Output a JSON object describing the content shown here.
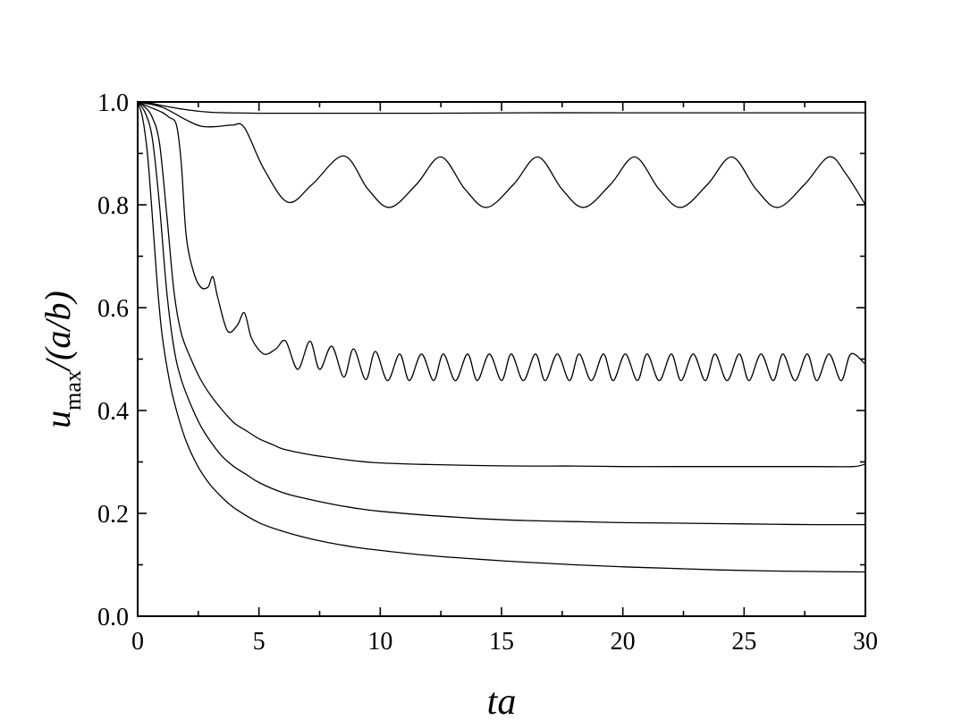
{
  "chart_data": {
    "type": "line",
    "title": "",
    "xlabel": "ta",
    "ylabel": {
      "main": "u",
      "subscript": "max",
      "suffix": "/(a/b)"
    },
    "xlim": [
      0,
      30
    ],
    "ylim": [
      0,
      1.0
    ],
    "xticks": [
      0,
      5,
      10,
      15,
      20,
      25,
      30
    ],
    "xtick_labels": [
      "0",
      "5",
      "10",
      "15",
      "20",
      "25",
      "30"
    ],
    "yticks": [
      0.0,
      0.2,
      0.4,
      0.6,
      0.8,
      1.0
    ],
    "ytick_labels": [
      "0.0",
      "0.2",
      "0.4",
      "0.6",
      "0.8",
      "1.0"
    ],
    "grid": false,
    "legend": false,
    "line_color": "#000000",
    "series": [
      {
        "x": [
          0,
          0.5,
          1,
          2,
          3,
          5,
          8,
          12,
          16,
          20,
          25,
          30
        ],
        "values": [
          1.0,
          0.998,
          0.993,
          0.985,
          0.98,
          0.978,
          0.978,
          0.978,
          0.979,
          0.979,
          0.979,
          0.979
        ]
      },
      {
        "x": [
          0,
          1,
          2,
          2.6,
          3.2,
          3.9,
          4.4,
          5.2,
          6.2,
          7.2,
          8.5,
          9.5,
          10.4,
          11.5,
          12.5,
          13.5,
          14.4,
          15.5,
          16.5,
          17.5,
          18.4,
          19.5,
          20.5,
          21.5,
          22.4,
          23.5,
          24.5,
          25.5,
          26.4,
          27.5,
          28.5,
          29.2,
          30
        ],
        "values": [
          1.0,
          0.99,
          0.965,
          0.953,
          0.952,
          0.955,
          0.95,
          0.87,
          0.805,
          0.84,
          0.895,
          0.83,
          0.795,
          0.84,
          0.893,
          0.83,
          0.795,
          0.84,
          0.893,
          0.83,
          0.795,
          0.84,
          0.893,
          0.83,
          0.795,
          0.84,
          0.893,
          0.83,
          0.795,
          0.84,
          0.893,
          0.86,
          0.8
        ]
      },
      {
        "x": [
          0,
          0.5,
          1,
          1.3,
          1.6,
          1.8,
          2,
          2.3,
          2.6,
          2.9,
          3.1,
          3.3,
          3.7,
          4.1,
          4.4,
          4.7,
          5.2,
          5.7,
          6.1,
          6.6,
          7.1,
          7.5,
          8.0,
          8.5,
          8.9,
          9.4,
          9.8,
          10.3,
          10.8,
          11.2,
          11.7,
          12.2,
          12.6,
          13.1,
          13.6,
          14.0,
          14.5,
          15.0,
          15.4,
          15.9,
          16.4,
          16.8,
          17.3,
          17.8,
          18.2,
          18.7,
          19.2,
          19.6,
          20.1,
          20.6,
          21.0,
          21.5,
          22.0,
          22.4,
          22.9,
          23.4,
          23.8,
          24.3,
          24.8,
          25.2,
          25.7,
          26.2,
          26.6,
          27.1,
          27.6,
          28.0,
          28.5,
          29.0,
          29.4,
          30
        ],
        "values": [
          1.0,
          0.99,
          0.98,
          0.97,
          0.955,
          0.88,
          0.74,
          0.67,
          0.64,
          0.64,
          0.66,
          0.62,
          0.555,
          0.565,
          0.59,
          0.54,
          0.51,
          0.52,
          0.535,
          0.48,
          0.535,
          0.48,
          0.525,
          0.465,
          0.52,
          0.46,
          0.515,
          0.458,
          0.51,
          0.458,
          0.51,
          0.458,
          0.51,
          0.458,
          0.51,
          0.458,
          0.51,
          0.458,
          0.51,
          0.458,
          0.51,
          0.458,
          0.51,
          0.458,
          0.51,
          0.458,
          0.51,
          0.458,
          0.51,
          0.458,
          0.51,
          0.458,
          0.51,
          0.458,
          0.51,
          0.458,
          0.51,
          0.458,
          0.51,
          0.458,
          0.51,
          0.458,
          0.51,
          0.458,
          0.51,
          0.458,
          0.51,
          0.458,
          0.51,
          0.49
        ]
      },
      {
        "x": [
          0,
          0.3,
          0.6,
          0.9,
          1.2,
          1.5,
          1.8,
          2.2,
          2.6,
          3.0,
          3.5,
          4.0,
          4.5,
          5.0,
          5.5,
          6.0,
          7.0,
          8.0,
          9.0,
          10.0,
          12.0,
          14.0,
          16.0,
          18.0,
          20.0,
          22.0,
          24.0,
          26.0,
          28.0,
          29.5,
          30
        ],
        "values": [
          1.0,
          0.99,
          0.97,
          0.92,
          0.78,
          0.63,
          0.55,
          0.5,
          0.46,
          0.43,
          0.4,
          0.375,
          0.36,
          0.345,
          0.335,
          0.325,
          0.315,
          0.308,
          0.302,
          0.298,
          0.295,
          0.293,
          0.292,
          0.292,
          0.291,
          0.291,
          0.291,
          0.291,
          0.291,
          0.291,
          0.296
        ]
      },
      {
        "x": [
          0,
          0.3,
          0.6,
          0.9,
          1.2,
          1.5,
          1.8,
          2.2,
          2.6,
          3.0,
          3.5,
          4.0,
          4.5,
          5.0,
          6.0,
          7.0,
          8.0,
          9.0,
          10.0,
          12.0,
          14.0,
          16.0,
          18.0,
          20.0,
          22.0,
          24.0,
          26.0,
          28.0,
          30
        ],
        "values": [
          1.0,
          0.98,
          0.93,
          0.8,
          0.63,
          0.52,
          0.46,
          0.41,
          0.37,
          0.34,
          0.31,
          0.29,
          0.275,
          0.26,
          0.24,
          0.228,
          0.218,
          0.21,
          0.204,
          0.196,
          0.19,
          0.186,
          0.184,
          0.182,
          0.181,
          0.18,
          0.179,
          0.178,
          0.178
        ]
      },
      {
        "x": [
          0,
          0.2,
          0.4,
          0.6,
          0.8,
          1.0,
          1.3,
          1.6,
          2.0,
          2.5,
          3.0,
          3.5,
          4.0,
          5.0,
          6.0,
          7.0,
          8.0,
          9.0,
          10.0,
          12.0,
          14.0,
          16.0,
          18.0,
          20.0,
          22.0,
          24.0,
          26.0,
          28.0,
          30
        ],
        "values": [
          1.0,
          0.97,
          0.9,
          0.78,
          0.65,
          0.55,
          0.46,
          0.4,
          0.34,
          0.29,
          0.255,
          0.23,
          0.21,
          0.182,
          0.165,
          0.152,
          0.142,
          0.134,
          0.128,
          0.118,
          0.111,
          0.105,
          0.1,
          0.096,
          0.093,
          0.09,
          0.088,
          0.087,
          0.086
        ]
      }
    ]
  }
}
